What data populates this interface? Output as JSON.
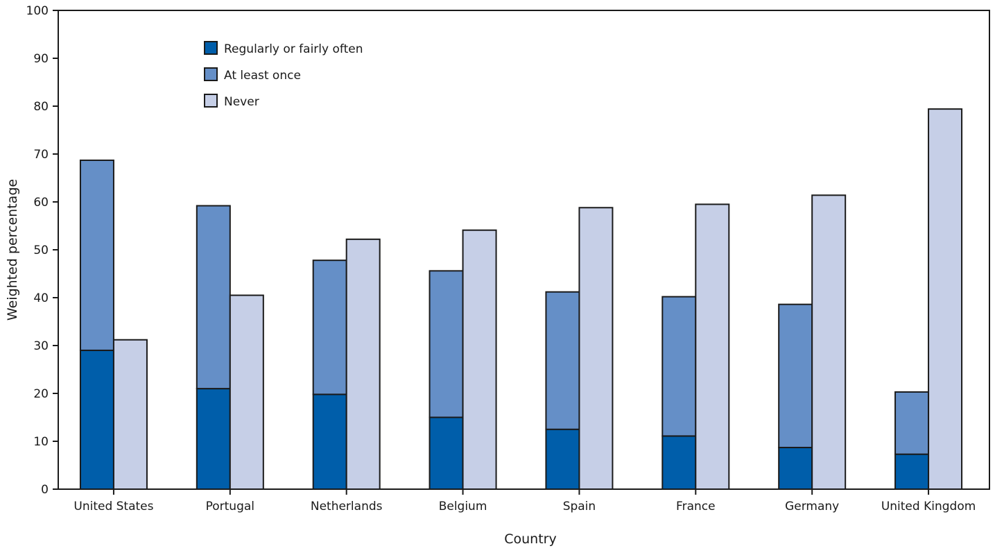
{
  "chart_data": {
    "type": "bar",
    "title": "",
    "xlabel": "Country",
    "ylabel": "Weighted percentage",
    "ylim": [
      0,
      100
    ],
    "yticks": [
      0,
      10,
      20,
      30,
      40,
      50,
      60,
      70,
      80,
      90,
      100
    ],
    "grid": false,
    "legend_position": "top-left",
    "categories": [
      "United States",
      "Portugal",
      "Netherlands",
      "Belgium",
      "Spain",
      "France",
      "Germany",
      "United Kingdom"
    ],
    "series": [
      {
        "name": "Regularly or fairly often",
        "color": "#005eaa",
        "stack": "ever",
        "values": [
          29.0,
          21.0,
          19.8,
          15.0,
          12.5,
          11.1,
          8.7,
          7.3
        ]
      },
      {
        "name": "At least once",
        "color": "#658fc7",
        "stack": "ever",
        "values": [
          39.7,
          38.2,
          28.0,
          30.6,
          28.7,
          29.1,
          29.9,
          13.0
        ]
      },
      {
        "name": "Never",
        "color": "#c6cfe7",
        "stack": "never",
        "values": [
          31.2,
          40.5,
          52.2,
          54.1,
          58.8,
          59.5,
          61.4,
          79.4
        ]
      }
    ]
  }
}
